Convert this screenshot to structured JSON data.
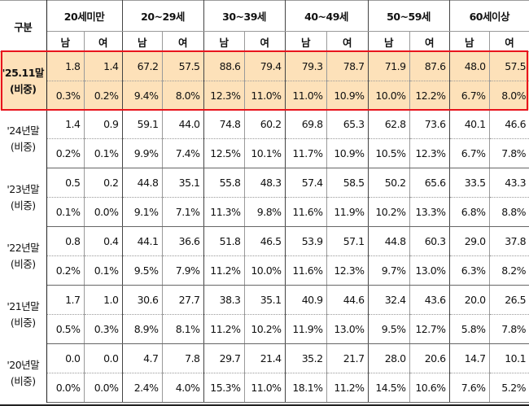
{
  "header": {
    "corner": "구분",
    "groups": [
      "20세미만",
      "20~29세",
      "30~39세",
      "40~49세",
      "50~59세",
      "60세이상"
    ],
    "male": "남",
    "female": "여"
  },
  "share_label": "(비중)",
  "highlight_color": "#e8141c",
  "rows": [
    {
      "label": "'25.11말",
      "values": [
        "1.8",
        "1.4",
        "67.2",
        "57.5",
        "88.6",
        "79.4",
        "79.3",
        "78.7",
        "71.9",
        "87.6",
        "48.0",
        "57.5"
      ],
      "shares": [
        "0.3%",
        "0.2%",
        "9.4%",
        "8.0%",
        "12.3%",
        "11.0%",
        "11.0%",
        "10.9%",
        "10.0%",
        "12.2%",
        "6.7%",
        "8.0%"
      ]
    },
    {
      "label": "'24년말",
      "values": [
        "1.4",
        "0.9",
        "59.1",
        "44.0",
        "74.8",
        "60.2",
        "69.8",
        "65.3",
        "62.8",
        "73.6",
        "40.1",
        "46.6"
      ],
      "shares": [
        "0.2%",
        "0.1%",
        "9.9%",
        "7.4%",
        "12.5%",
        "10.1%",
        "11.7%",
        "10.9%",
        "10.5%",
        "12.3%",
        "6.7%",
        "7.8%"
      ]
    },
    {
      "label": "'23년말",
      "values": [
        "0.5",
        "0.2",
        "44.8",
        "35.1",
        "55.8",
        "48.3",
        "57.4",
        "58.5",
        "50.2",
        "65.6",
        "33.5",
        "43.3"
      ],
      "shares": [
        "0.1%",
        "0.0%",
        "9.1%",
        "7.1%",
        "11.3%",
        "9.8%",
        "11.6%",
        "11.9%",
        "10.2%",
        "13.3%",
        "6.8%",
        "8.8%"
      ]
    },
    {
      "label": "'22년말",
      "values": [
        "0.8",
        "0.4",
        "44.1",
        "36.6",
        "51.8",
        "46.5",
        "53.9",
        "57.1",
        "44.8",
        "60.3",
        "29.0",
        "37.8"
      ],
      "shares": [
        "0.2%",
        "0.1%",
        "9.5%",
        "7.9%",
        "11.2%",
        "10.0%",
        "11.6%",
        "12.3%",
        "9.7%",
        "13.0%",
        "6.3%",
        "8.2%"
      ]
    },
    {
      "label": "'21년말",
      "values": [
        "1.7",
        "1.0",
        "30.6",
        "27.7",
        "38.3",
        "35.1",
        "40.9",
        "44.6",
        "32.4",
        "43.6",
        "20.0",
        "26.5"
      ],
      "shares": [
        "0.5%",
        "0.3%",
        "8.9%",
        "8.1%",
        "11.2%",
        "10.2%",
        "11.9%",
        "13.0%",
        "9.5%",
        "12.7%",
        "5.8%",
        "7.8%"
      ]
    },
    {
      "label": "'20년말",
      "values": [
        "0.0",
        "0.0",
        "4.7",
        "7.8",
        "29.7",
        "21.4",
        "35.2",
        "21.7",
        "28.0",
        "20.6",
        "14.7",
        "10.1"
      ],
      "shares": [
        "0.0%",
        "0.0%",
        "2.4%",
        "4.0%",
        "15.3%",
        "11.0%",
        "18.1%",
        "11.2%",
        "14.5%",
        "10.6%",
        "7.6%",
        "5.2%"
      ]
    }
  ]
}
